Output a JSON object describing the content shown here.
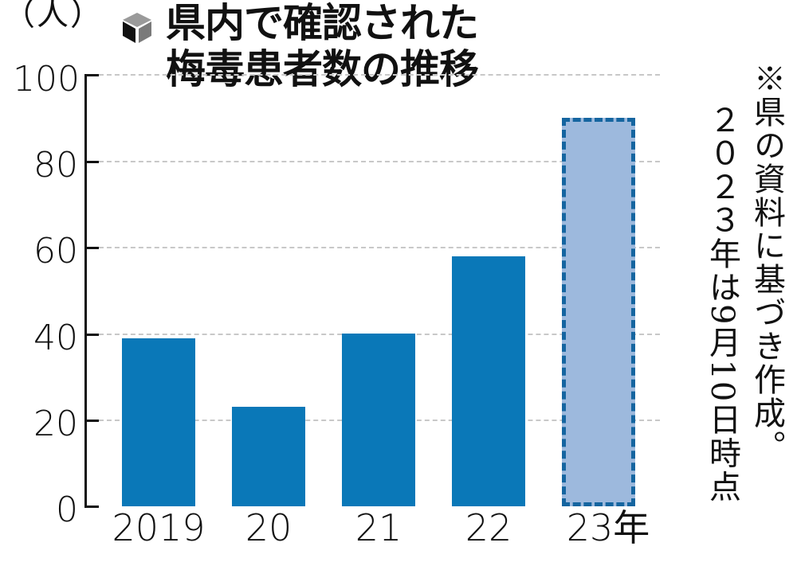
{
  "header": {
    "unit_label": "（人）",
    "title_line1": "県内で確認された",
    "title_line2": "梅毒患者数の推移",
    "title_icon": "cube-icon"
  },
  "note": {
    "line1": "※県の資料に基づき作成。",
    "line2": "２０２３年は9月10日時点"
  },
  "colors": {
    "bar": "#0a78b8",
    "bar_partial_fill": "#9db9dd",
    "bar_partial_border": "#1565a0",
    "grid": "#c8c8c8"
  },
  "axis": {
    "y_ticks": [
      "0",
      "20",
      "40",
      "60",
      "80",
      "100"
    ],
    "x_labels": [
      "2019",
      "20",
      "21",
      "22",
      "23年"
    ]
  },
  "chart_data": {
    "type": "bar",
    "title": "県内で確認された梅毒患者数の推移",
    "xlabel": "",
    "ylabel": "（人）",
    "categories": [
      "2019",
      "20",
      "21",
      "22",
      "23年"
    ],
    "values": [
      39,
      23,
      40,
      58,
      90
    ],
    "ylim": [
      0,
      100
    ],
    "yticks": [
      0,
      20,
      40,
      60,
      80,
      100
    ],
    "grid": true,
    "grid_style": "dashed horizontal",
    "legend": null,
    "annotations": [
      "※県の資料に基づき作成。２０２３年は9月10日時点"
    ],
    "notes": "2023 bar is partial-year (as of Sept 10), shown in lighter fill with dashed border"
  }
}
